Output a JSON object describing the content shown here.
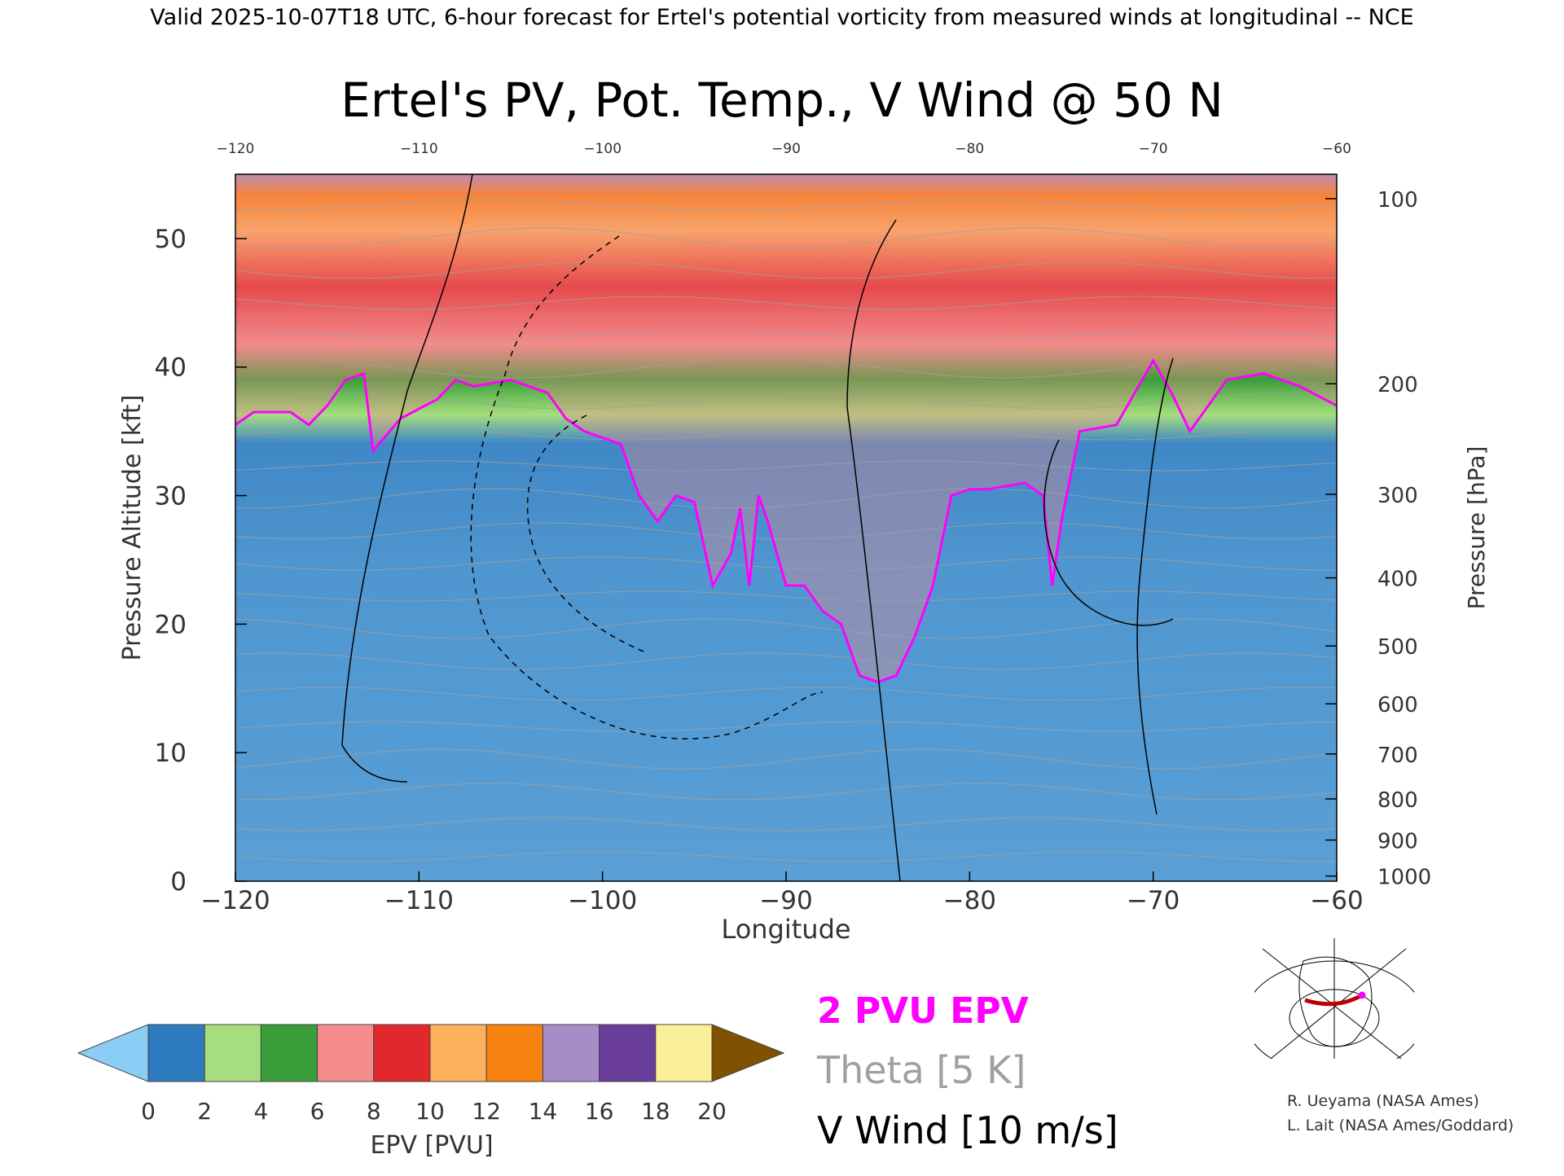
{
  "header": {
    "text": "Valid 2025-10-07T18 UTC, 6-hour forecast for Ertel's potential vorticity from measured winds at longitudinal -- NCE"
  },
  "chart_data": {
    "type": "heatmap",
    "title": "Ertel's PV, Pot. Temp., V Wind @ 50 N",
    "xlabel": "Longitude",
    "ylabel_left": "Pressure Altitude [kft]",
    "ylabel_right": "Pressure [hPa]",
    "xlim": [
      -120,
      -60
    ],
    "ylim": [
      0,
      55
    ],
    "x_ticks": [
      -120,
      -110,
      -100,
      -90,
      -80,
      -70,
      -60
    ],
    "y_ticks": [
      0,
      10,
      20,
      30,
      40,
      50
    ],
    "pressure_ticks": [
      {
        "hPa": "100",
        "kft": 53.1
      },
      {
        "hPa": "200",
        "kft": 38.7
      },
      {
        "hPa": "300",
        "kft": 30.1
      },
      {
        "hPa": "400",
        "kft": 23.6
      },
      {
        "hPa": "500",
        "kft": 18.3
      },
      {
        "hPa": "600",
        "kft": 13.8
      },
      {
        "hPa": "700",
        "kft": 9.9
      },
      {
        "hPa": "800",
        "kft": 6.4
      },
      {
        "hPa": "900",
        "kft": 3.2
      },
      {
        "hPa": "1000",
        "kft": 0.4
      }
    ],
    "pv_2pvu_contour": [
      [
        -120,
        35.5
      ],
      [
        -119,
        36.5
      ],
      [
        -117,
        36.5
      ],
      [
        -116,
        35.5
      ],
      [
        -115,
        37
      ],
      [
        -114,
        39
      ],
      [
        -113,
        39.5
      ],
      [
        -112.5,
        33.5
      ],
      [
        -111,
        36
      ],
      [
        -109,
        37.5
      ],
      [
        -108,
        39
      ],
      [
        -107,
        38.5
      ],
      [
        -105,
        39
      ],
      [
        -104,
        38.5
      ],
      [
        -103,
        38
      ],
      [
        -102,
        36
      ],
      [
        -101,
        35
      ],
      [
        -100,
        34.5
      ],
      [
        -99,
        34
      ],
      [
        -98,
        30
      ],
      [
        -97,
        28
      ],
      [
        -96,
        30
      ],
      [
        -95,
        29.5
      ],
      [
        -94,
        23
      ],
      [
        -93,
        25.5
      ],
      [
        -92.5,
        29
      ],
      [
        -92,
        23
      ],
      [
        -91.5,
        30
      ],
      [
        -91,
        28
      ],
      [
        -90,
        23
      ],
      [
        -89,
        23
      ],
      [
        -88,
        21
      ],
      [
        -87,
        20
      ],
      [
        -86,
        16
      ],
      [
        -85,
        15.5
      ],
      [
        -84,
        16
      ],
      [
        -83,
        19
      ],
      [
        -82,
        23
      ],
      [
        -81,
        30
      ],
      [
        -80,
        30.5
      ],
      [
        -79,
        30.5
      ],
      [
        -77,
        31
      ],
      [
        -76,
        30
      ],
      [
        -75.5,
        23
      ],
      [
        -75,
        28
      ],
      [
        -74,
        35
      ],
      [
        -72,
        35.5
      ],
      [
        -71,
        38
      ],
      [
        -70,
        40.5
      ],
      [
        -69,
        38
      ],
      [
        -68,
        35
      ],
      [
        -67,
        37
      ],
      [
        -66,
        39
      ],
      [
        -64,
        39.5
      ],
      [
        -62,
        38.5
      ],
      [
        -60,
        37
      ]
    ],
    "colorbar": {
      "label": "EPV [PVU]",
      "ticks": [
        "0",
        "2",
        "4",
        "6",
        "8",
        "10",
        "12",
        "14",
        "16",
        "18",
        "20"
      ],
      "colors": [
        "#8ccdf5",
        "#2e7abe",
        "#a6dd7e",
        "#3a9e3a",
        "#f58c8c",
        "#e0282d",
        "#fcb15c",
        "#f88210",
        "#a88cc6",
        "#6a3d9a",
        "#fbf09a",
        "#7f5100"
      ]
    },
    "legend": [
      {
        "label": "2 PVU EPV",
        "color": "#ff00ff"
      },
      {
        "label": "Theta [5 K]",
        "color": "#a0a0a0"
      },
      {
        "label": "V Wind [10 m/s]",
        "color": "#000000"
      }
    ]
  },
  "credits": {
    "line1": "R. Ueyama (NASA Ames)",
    "line2": "L. Lait (NASA Ames/Goddard)"
  },
  "colors": {
    "pv_contour": "#ff00ff",
    "theta": "#a0a0a0",
    "wind": "#000000"
  }
}
